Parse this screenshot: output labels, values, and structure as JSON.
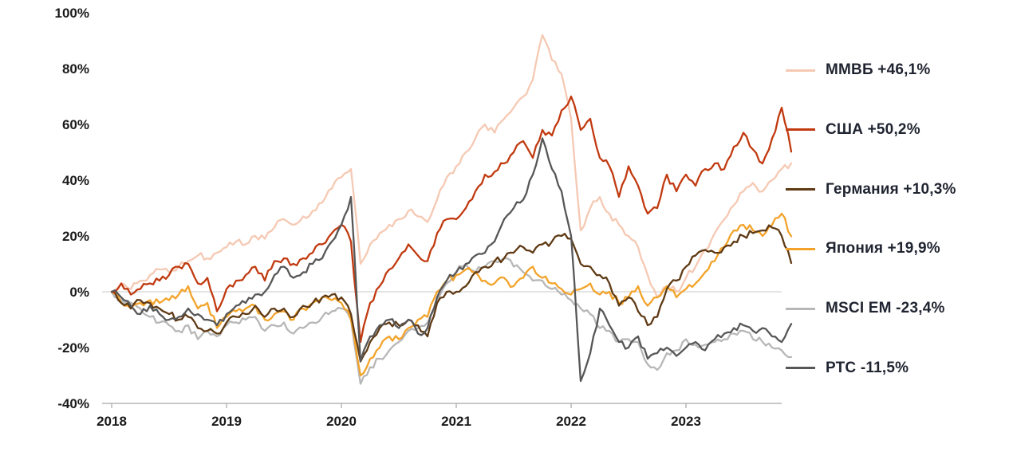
{
  "page": {
    "background": "#ffffff",
    "description": "Line chart of cumulative stock index returns, 2018-2023, legend on right"
  },
  "chart_data": {
    "type": "line",
    "title": "",
    "xlabel": "",
    "ylabel": "",
    "x_start": 2018.0,
    "x_step_years": 0.0833333,
    "x_range": [
      2018,
      2024
    ],
    "y_range": [
      -40,
      100
    ],
    "grid": "horizontal zero line only",
    "legend_position": "right",
    "axis_color": "#a6a6a6",
    "zero_line_color": "#c9c9c9",
    "tick_label_color": "#1a1a1a",
    "legend_text_color": "#1f2430",
    "x_ticks": [
      {
        "value": 2018,
        "label": "2018"
      },
      {
        "value": 2019,
        "label": "2019"
      },
      {
        "value": 2020,
        "label": "2020"
      },
      {
        "value": 2021,
        "label": "2021"
      },
      {
        "value": 2022,
        "label": "2022"
      },
      {
        "value": 2023,
        "label": "2023"
      }
    ],
    "y_ticks": [
      {
        "value": 100,
        "label": "100%"
      },
      {
        "value": 80,
        "label": "80%"
      },
      {
        "value": 60,
        "label": "60%"
      },
      {
        "value": 40,
        "label": "40%"
      },
      {
        "value": 20,
        "label": "20%"
      },
      {
        "value": 0,
        "label": "0%"
      },
      {
        "value": -20,
        "label": "-20%"
      },
      {
        "value": -40,
        "label": "-40%"
      }
    ],
    "series": [
      {
        "name": "ММВБ",
        "legend_label": "ММВБ +46,1%",
        "final_label": "+46,1%",
        "final_value": 46.1,
        "color": "#f5c9b3",
        "values": [
          0,
          3,
          1,
          4,
          6,
          8,
          7,
          9,
          11,
          13,
          12,
          14,
          16,
          18,
          17,
          20,
          19,
          23,
          26,
          24,
          27,
          29,
          32,
          37,
          41,
          44,
          10,
          17,
          21,
          24,
          26,
          29,
          27,
          25,
          33,
          41,
          45,
          50,
          55,
          60,
          57,
          62,
          66,
          70,
          76,
          92,
          83,
          78,
          62,
          22,
          30,
          34,
          28,
          24,
          20,
          16,
          6,
          -2,
          2,
          0,
          5,
          9,
          15,
          21,
          26,
          31,
          36,
          39,
          36,
          40,
          44,
          46.1
        ]
      },
      {
        "name": "США",
        "legend_label": "США +50,2%",
        "final_label": "+50,2%",
        "final_value": 50.2,
        "color": "#c13a10",
        "values": [
          0,
          3,
          -1,
          1,
          3,
          4,
          6,
          9,
          10,
          3,
          5,
          -7,
          1,
          4,
          6,
          9,
          4,
          11,
          12,
          10,
          12,
          14,
          17,
          21,
          24,
          18,
          -18,
          -4,
          2,
          8,
          12,
          17,
          13,
          11,
          21,
          26,
          26,
          30,
          36,
          42,
          43,
          46,
          50,
          54,
          48,
          58,
          56,
          65,
          70,
          58,
          62,
          48,
          45,
          34,
          45,
          38,
          28,
          30,
          42,
          36,
          42,
          38,
          44,
          46,
          44,
          52,
          57,
          51,
          46,
          55,
          66,
          50.2
        ]
      },
      {
        "name": "Германия",
        "legend_label": "Германия +10,3%",
        "final_label": "+10,3%",
        "final_value": 10.3,
        "color": "#5f3a14",
        "values": [
          0,
          -4,
          -6,
          -3,
          -4,
          -6,
          -8,
          -10,
          -9,
          -13,
          -14,
          -15,
          -11,
          -9,
          -8,
          -5,
          -9,
          -6,
          -6,
          -9,
          -5,
          -4,
          -2,
          -1,
          -2,
          -8,
          -25,
          -18,
          -13,
          -11,
          -12,
          -10,
          -12,
          -16,
          -4,
          0,
          0,
          2,
          7,
          9,
          11,
          12,
          14,
          16,
          14,
          17,
          18,
          20,
          19,
          10,
          9,
          6,
          3,
          -5,
          -2,
          -7,
          -12,
          -9,
          1,
          4,
          9,
          13,
          15,
          14,
          16,
          18,
          20,
          21,
          22,
          23,
          20,
          10.3
        ]
      },
      {
        "name": "Япония",
        "legend_label": "Япония +19,9%",
        "final_label": "+19,9%",
        "final_value": 19.9,
        "color": "#f3a32a",
        "values": [
          0,
          -4,
          -6,
          -4,
          -3,
          -4,
          -3,
          -1,
          2,
          -6,
          -4,
          -13,
          -9,
          -7,
          -6,
          -5,
          -10,
          -8,
          -7,
          -10,
          -6,
          -4,
          -2,
          -3,
          -4,
          -10,
          -30,
          -24,
          -20,
          -16,
          -17,
          -13,
          -10,
          -9,
          0,
          4,
          6,
          8,
          7,
          4,
          3,
          5,
          2,
          5,
          9,
          5,
          3,
          1,
          -1,
          1,
          3,
          -1,
          0,
          -4,
          -2,
          2,
          -5,
          -2,
          2,
          -2,
          1,
          3,
          7,
          11,
          16,
          22,
          24,
          22,
          20,
          24,
          28,
          19.9
        ]
      },
      {
        "name": "MSCI EM",
        "legend_label": "MSCI EM -23,4%",
        "final_label": "-23,4%",
        "final_value": -23.4,
        "color": "#b7b7b7",
        "values": [
          0,
          -3,
          -4,
          -6,
          -9,
          -11,
          -12,
          -14,
          -12,
          -17,
          -14,
          -16,
          -12,
          -11,
          -10,
          -9,
          -14,
          -12,
          -11,
          -15,
          -13,
          -11,
          -9,
          -7,
          -6,
          -10,
          -33,
          -27,
          -24,
          -21,
          -18,
          -14,
          -13,
          -11,
          -3,
          3,
          7,
          10,
          7,
          9,
          11,
          12,
          9,
          7,
          4,
          4,
          1,
          -1,
          -3,
          -6,
          -8,
          -13,
          -14,
          -18,
          -17,
          -18,
          -26,
          -28,
          -22,
          -21,
          -17,
          -19,
          -19,
          -18,
          -17,
          -15,
          -14,
          -17,
          -18,
          -20,
          -21,
          -23.4
        ]
      },
      {
        "name": "РТС",
        "legend_label": "РТС -11,5%",
        "final_label": "-11,5%",
        "final_value": -11.5,
        "color": "#575757",
        "values": [
          0,
          -2,
          -5,
          -8,
          -5,
          -8,
          -10,
          -9,
          -6,
          -8,
          -10,
          -12,
          -8,
          -5,
          -4,
          -1,
          0,
          6,
          9,
          5,
          7,
          10,
          12,
          18,
          24,
          34,
          -25,
          -16,
          -12,
          -10,
          -13,
          -10,
          -15,
          -13,
          -2,
          4,
          7,
          10,
          13,
          14,
          18,
          26,
          30,
          33,
          42,
          55,
          44,
          36,
          20,
          -32,
          -22,
          -6,
          -12,
          -18,
          -20,
          -16,
          -24,
          -22,
          -20,
          -23,
          -20,
          -18,
          -21,
          -17,
          -15,
          -13,
          -12,
          -14,
          -13,
          -16,
          -18,
          -11.5
        ]
      }
    ]
  }
}
